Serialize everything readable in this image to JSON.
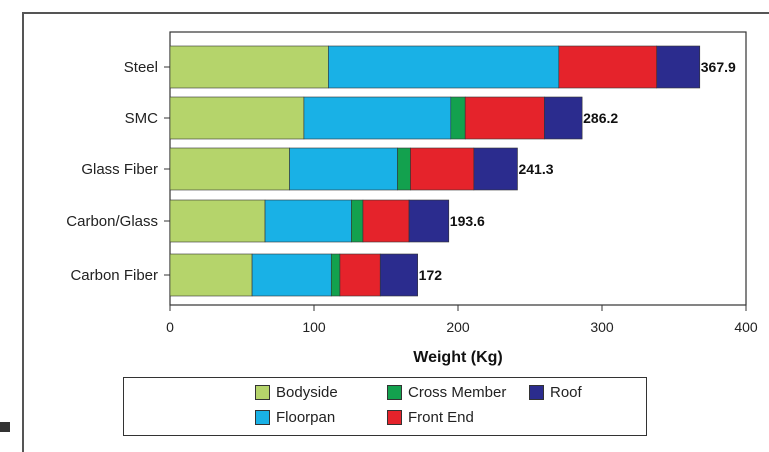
{
  "chart_data": {
    "type": "bar",
    "orientation": "horizontal",
    "stacked": true,
    "categories": [
      "Steel",
      "SMC",
      "Glass Fiber",
      "Carbon/Glass",
      "Carbon Fiber"
    ],
    "series": [
      {
        "name": "Bodyside",
        "color": "#b5d46b",
        "values": [
          110,
          93,
          83,
          66,
          57
        ]
      },
      {
        "name": "Floorpan",
        "color": "#19b1e6",
        "values": [
          160,
          102,
          75,
          60,
          55
        ]
      },
      {
        "name": "Cross Member",
        "color": "#13a14e",
        "values": [
          0,
          10,
          9,
          8,
          6
        ]
      },
      {
        "name": "Front End",
        "color": "#e5232b",
        "values": [
          68,
          55,
          44,
          32,
          28
        ]
      },
      {
        "name": "Roof",
        "color": "#2b2c8e",
        "values": [
          29.9,
          26.2,
          30.3,
          27.6,
          26
        ]
      }
    ],
    "totals": [
      "367.9",
      "286.2",
      "241.3",
      "193.6",
      "172"
    ],
    "xlabel": "Weight (Kg)",
    "ylabel": "",
    "title": "",
    "xlim": [
      0,
      400
    ],
    "xticks": [
      "0",
      "100",
      "200",
      "300",
      "400"
    ],
    "grid": false,
    "legend_position": "bottom",
    "legend_order": [
      "Bodyside",
      "Cross Member",
      "Roof",
      "Floorpan",
      "Front End"
    ]
  }
}
